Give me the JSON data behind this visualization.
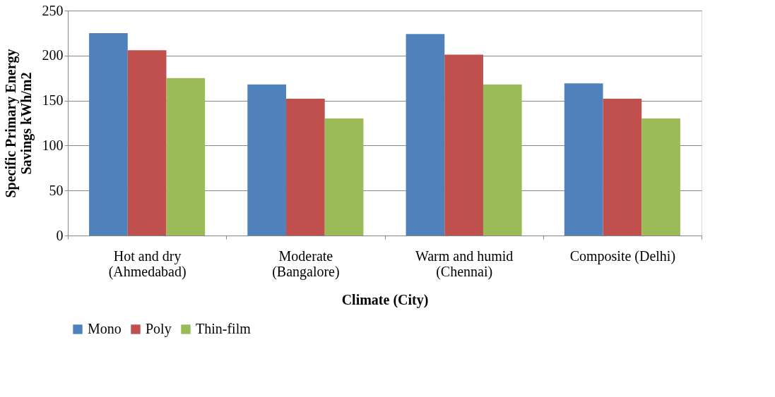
{
  "chart_data": {
    "type": "bar",
    "xlabel": "Climate (City)",
    "ylabel": "Specific Primary Energy\nSavings kWh/m2",
    "categories": [
      "Hot and dry\n(Ahmedabad)",
      "Moderate\n(Bangalore)",
      "Warm and humid\n(Chennai)",
      "Composite (Delhi)"
    ],
    "series": [
      {
        "name": "Mono",
        "color": "#4f81bd",
        "values": [
          225,
          168,
          224,
          169
        ]
      },
      {
        "name": "Poly",
        "color": "#c0504d",
        "values": [
          206,
          152,
          201,
          152
        ]
      },
      {
        "name": "Thin-film",
        "color": "#9bbb59",
        "values": [
          175,
          130,
          168,
          130
        ]
      }
    ],
    "ylim": [
      0,
      250
    ],
    "yticks": [
      0,
      50,
      100,
      150,
      200,
      250
    ],
    "grid": "y",
    "legend": "bottom"
  }
}
